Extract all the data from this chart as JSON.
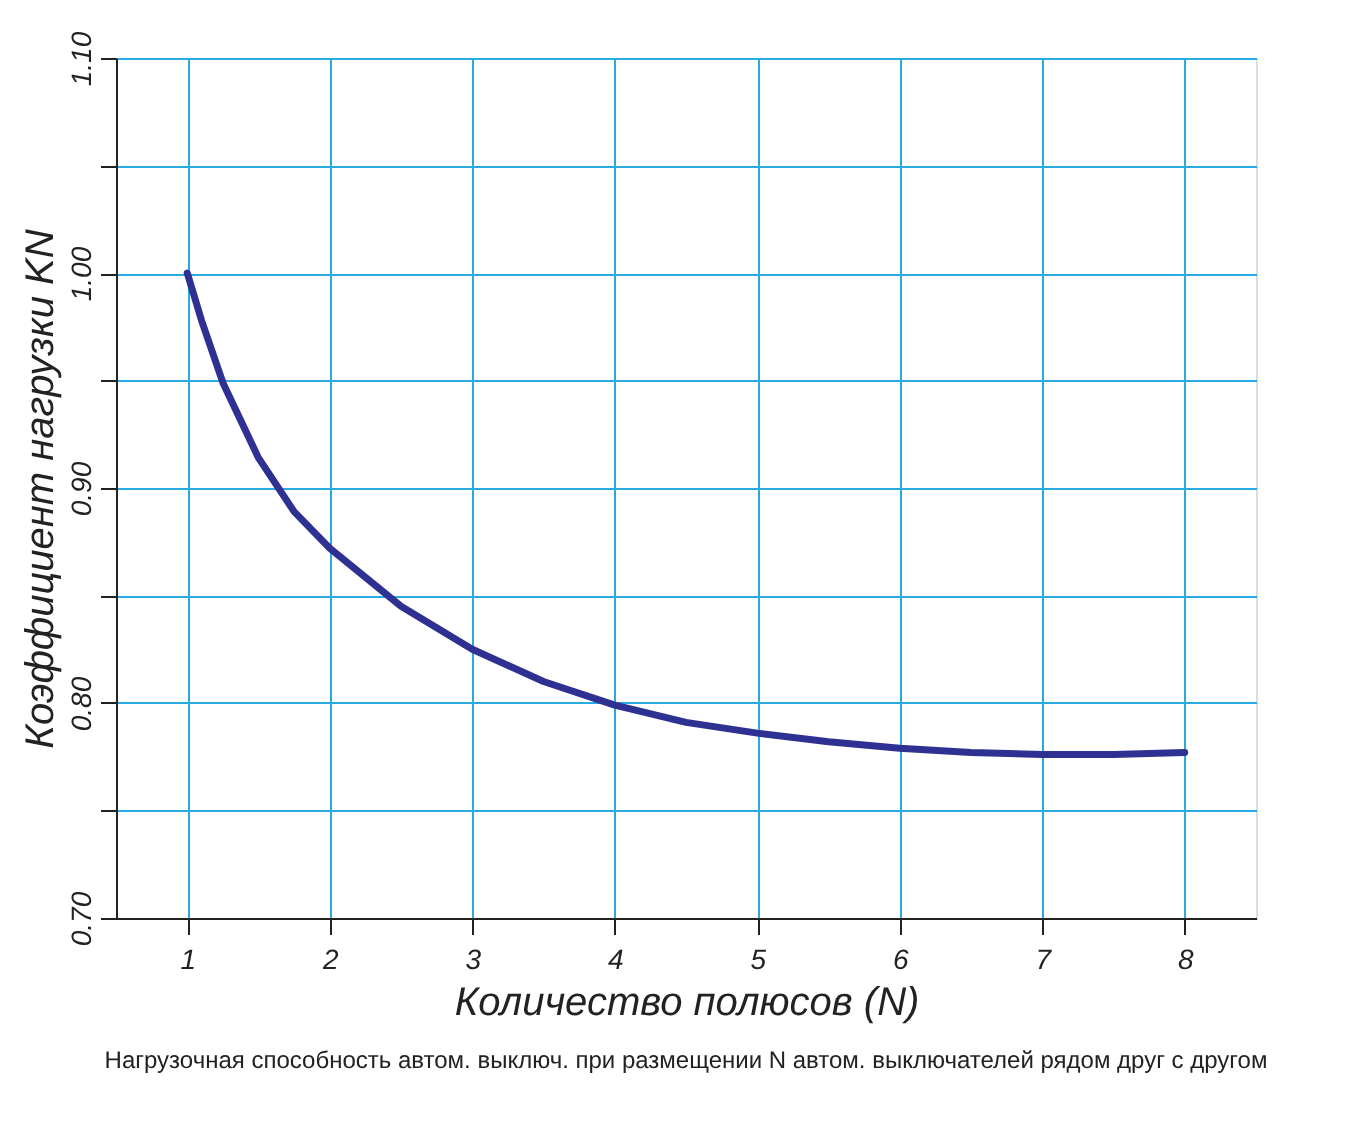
{
  "chart_data": {
    "type": "line",
    "xlabel": "Количество полюсов (N)",
    "ylabel": "Коэффициент нагрузки KN",
    "annotations": [
      "Нагрузочная способность автом. выключ. при размещении N автом. выключателей рядом друг с другом"
    ],
    "x": [
      1,
      1.1,
      1.25,
      1.5,
      1.75,
      2,
      2.5,
      3,
      3.5,
      4,
      4.5,
      5,
      5.5,
      6,
      6.5,
      7,
      7.5,
      8
    ],
    "series": [
      {
        "color": "#2e3192",
        "values": [
          1.0,
          0.978,
          0.949,
          0.914,
          0.889,
          0.872,
          0.845,
          0.825,
          0.81,
          0.799,
          0.791,
          0.786,
          0.782,
          0.779,
          0.777,
          0.776,
          0.776,
          0.777
        ]
      }
    ],
    "xlim": [
      0.5,
      8.5
    ],
    "xticks": [
      1,
      2,
      3,
      4,
      5,
      6,
      7,
      8
    ],
    "ylim": [
      0.7,
      1.1
    ],
    "yticks": [
      {
        "value": 0.7,
        "label": "0.70"
      },
      {
        "value": 0.75,
        "label": null
      },
      {
        "value": 0.8,
        "label": "0.80"
      },
      {
        "value": 0.85,
        "label": null
      },
      {
        "value": 0.9,
        "label": "0.90"
      },
      {
        "value": 0.95,
        "label": null
      },
      {
        "value": 1.0,
        "label": "1.00"
      },
      {
        "value": 1.05,
        "label": null
      },
      {
        "value": 1.1,
        "label": "1.10"
      }
    ],
    "grid": true,
    "marker": "none",
    "line_style": "solid"
  }
}
